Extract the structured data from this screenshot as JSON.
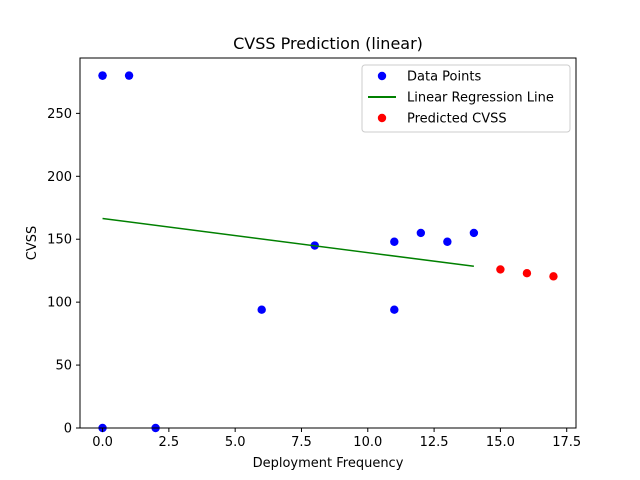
{
  "chart_data": {
    "type": "scatter",
    "title": "CVSS Prediction (linear)",
    "xlabel": "Deployment Frequency",
    "ylabel": "CVSS",
    "xlim": [
      -0.85,
      17.85
    ],
    "ylim": [
      0,
      294
    ],
    "xticks": [
      0.0,
      2.5,
      5.0,
      7.5,
      10.0,
      12.5,
      15.0,
      17.5
    ],
    "xtick_labels": [
      "0.0",
      "2.5",
      "5.0",
      "7.5",
      "10.0",
      "12.5",
      "15.0",
      "17.5"
    ],
    "yticks": [
      0,
      50,
      100,
      150,
      200,
      250
    ],
    "ytick_labels": [
      "0",
      "50",
      "100",
      "150",
      "200",
      "250"
    ],
    "grid": false,
    "legend_position": "top-right",
    "series": [
      {
        "name": "Data Points",
        "kind": "scatter",
        "color": "#0000ff",
        "points": [
          [
            0,
            280
          ],
          [
            0,
            280
          ],
          [
            1,
            280
          ],
          [
            0,
            0
          ],
          [
            2,
            0
          ],
          [
            6,
            94
          ],
          [
            8,
            145
          ],
          [
            11,
            148
          ],
          [
            11,
            94
          ],
          [
            12,
            155
          ],
          [
            13,
            148
          ],
          [
            14,
            155
          ]
        ]
      },
      {
        "name": "Linear Regression Line",
        "kind": "line",
        "color": "#008000",
        "points": [
          [
            0,
            166.5
          ],
          [
            14,
            128.5
          ]
        ]
      },
      {
        "name": "Predicted CVSS",
        "kind": "scatter",
        "color": "#ff0000",
        "points": [
          [
            15,
            126
          ],
          [
            16,
            123
          ],
          [
            17,
            120.5
          ]
        ]
      }
    ]
  }
}
